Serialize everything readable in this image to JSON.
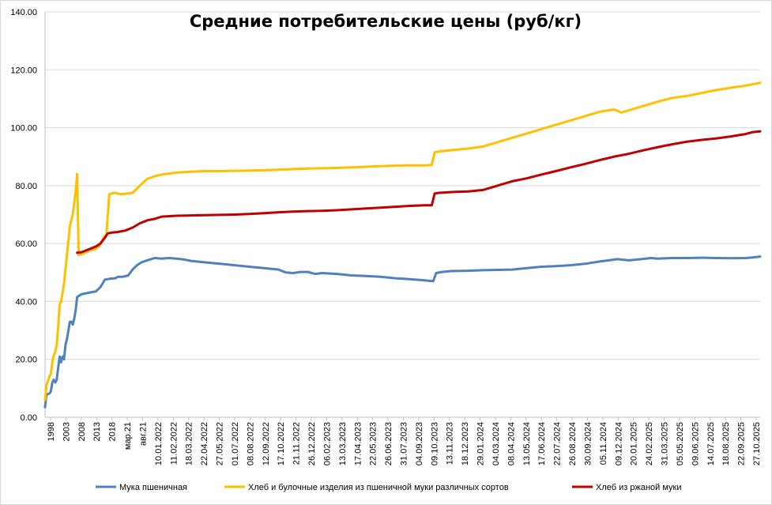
{
  "chart_data": {
    "type": "line",
    "title": "Средние потребительские цены (руб/кг)",
    "xlabel": "",
    "ylabel": "",
    "ylim": [
      0,
      140
    ],
    "y_ticks": [
      "0.00",
      "20.00",
      "40.00",
      "60.00",
      "80.00",
      "100.00",
      "120.00",
      "140.00"
    ],
    "grid": "horizontal",
    "legend_position": "bottom",
    "x_tick_labels": [
      "1998",
      "2003",
      "2008",
      "2013",
      "2018",
      "мар.21",
      "авг.21",
      "10.01.2022",
      "11.02.2022",
      "18.03.2022",
      "22.04.2022",
      "27.05.2022",
      "01.07.2022",
      "08.08.2022",
      "12.09.2022",
      "17.10.2022",
      "21.11.2022",
      "26.12.2022",
      "06.02.2023",
      "13.03.2023",
      "17.04.2023",
      "22.05.2023",
      "26.06.2023",
      "31.07.2023",
      "04.09.2023",
      "09.10.2023",
      "13.11.2023",
      "18.12.2023",
      "29.01.2024",
      "04.03.2024",
      "08.04.2024",
      "13.05.2024",
      "17.06.2024",
      "22.07.2024",
      "26.08.2024",
      "30.09.2024",
      "05.11.2024",
      "09.12.2024",
      "20.01.2025",
      "24.02.2025",
      "31.03.2025",
      "05.05.2025",
      "09.06.2025",
      "14.07.2025",
      "18.08.2025",
      "22.09.2025",
      "27.10.2025"
    ],
    "series": [
      {
        "name": "Мука пшеничная",
        "color": "#4f81bd",
        "points": [
          [
            0,
            3.5
          ],
          [
            1,
            8
          ],
          [
            2,
            8
          ],
          [
            3,
            8.2
          ],
          [
            4,
            9
          ],
          [
            5,
            12
          ],
          [
            6,
            13
          ],
          [
            7,
            12
          ],
          [
            8,
            13
          ],
          [
            9,
            17
          ],
          [
            10,
            21
          ],
          [
            11,
            19
          ],
          [
            12,
            21
          ],
          [
            13,
            20
          ],
          [
            14,
            25
          ],
          [
            15,
            27
          ],
          [
            16,
            30
          ],
          [
            17,
            33
          ],
          [
            18,
            33
          ],
          [
            19,
            32
          ],
          [
            20,
            34
          ],
          [
            21,
            37
          ],
          [
            22,
            41.5
          ],
          [
            25,
            42.5
          ],
          [
            30,
            43
          ],
          [
            35,
            43.5
          ],
          [
            38,
            45
          ],
          [
            41,
            47.5
          ],
          [
            44,
            47.8
          ],
          [
            48,
            48
          ],
          [
            50,
            48.5
          ],
          [
            53,
            48.5
          ],
          [
            57,
            49
          ],
          [
            60,
            51
          ],
          [
            63,
            52.5
          ],
          [
            66,
            53.5
          ],
          [
            69,
            54
          ],
          [
            72,
            54.5
          ],
          [
            75,
            55
          ],
          [
            80,
            54.8
          ],
          [
            85,
            55
          ],
          [
            90,
            54.8
          ],
          [
            95,
            54.5
          ],
          [
            100,
            54
          ],
          [
            110,
            53.5
          ],
          [
            120,
            53
          ],
          [
            130,
            52.5
          ],
          [
            140,
            52
          ],
          [
            150,
            51.5
          ],
          [
            160,
            51
          ],
          [
            165,
            50
          ],
          [
            170,
            49.8
          ],
          [
            175,
            50.2
          ],
          [
            180,
            50.2
          ],
          [
            185,
            49.5
          ],
          [
            190,
            49.8
          ],
          [
            200,
            49.5
          ],
          [
            210,
            49
          ],
          [
            220,
            48.8
          ],
          [
            230,
            48.5
          ],
          [
            240,
            48
          ],
          [
            250,
            47.7
          ],
          [
            260,
            47.3
          ],
          [
            266,
            47
          ],
          [
            268,
            49.8
          ],
          [
            272,
            50.2
          ],
          [
            278,
            50.5
          ],
          [
            290,
            50.6
          ],
          [
            300,
            50.8
          ],
          [
            320,
            51
          ],
          [
            330,
            51.5
          ],
          [
            340,
            52
          ],
          [
            350,
            52.2
          ],
          [
            360,
            52.5
          ],
          [
            370,
            53
          ],
          [
            380,
            53.8
          ],
          [
            388,
            54.3
          ],
          [
            392,
            54.6
          ],
          [
            400,
            54.2
          ],
          [
            410,
            54.7
          ],
          [
            415,
            55
          ],
          [
            420,
            54.8
          ],
          [
            430,
            55
          ],
          [
            440,
            55
          ],
          [
            450,
            55.1
          ],
          [
            460,
            55
          ],
          [
            470,
            54.9
          ],
          [
            480,
            55
          ],
          [
            485,
            55.2
          ],
          [
            490,
            55.5
          ]
        ]
      },
      {
        "name": "Хлеб и булочные изделия из пшеничной муки различных сортов",
        "color": "#ffc000",
        "points": [
          [
            0,
            6
          ],
          [
            1,
            11
          ],
          [
            2,
            12.5
          ],
          [
            3,
            14
          ],
          [
            4,
            15
          ],
          [
            5,
            19
          ],
          [
            6,
            21.5
          ],
          [
            7,
            22.5
          ],
          [
            8,
            25
          ],
          [
            9,
            31
          ],
          [
            10,
            39
          ],
          [
            11,
            40
          ],
          [
            12,
            43
          ],
          [
            13,
            46
          ],
          [
            14,
            51
          ],
          [
            15,
            56
          ],
          [
            16,
            61
          ],
          [
            17,
            66
          ],
          [
            18,
            68
          ],
          [
            19,
            70
          ],
          [
            20,
            74
          ],
          [
            21,
            78
          ],
          [
            22,
            84
          ],
          [
            23,
            56
          ],
          [
            26,
            56.5
          ],
          [
            30,
            57.5
          ],
          [
            34,
            58
          ],
          [
            37,
            59
          ],
          [
            40,
            62
          ],
          [
            42,
            63
          ],
          [
            44,
            77
          ],
          [
            47,
            77.5
          ],
          [
            50,
            77.3
          ],
          [
            52,
            77
          ],
          [
            55,
            77.2
          ],
          [
            60,
            77.5
          ],
          [
            65,
            80
          ],
          [
            70,
            82.3
          ],
          [
            75,
            83.2
          ],
          [
            80,
            83.8
          ],
          [
            90,
            84.5
          ],
          [
            100,
            84.8
          ],
          [
            110,
            85
          ],
          [
            120,
            85
          ],
          [
            130,
            85.1
          ],
          [
            140,
            85.2
          ],
          [
            150,
            85.3
          ],
          [
            160,
            85.5
          ],
          [
            170,
            85.7
          ],
          [
            180,
            85.9
          ],
          [
            190,
            86
          ],
          [
            200,
            86.1
          ],
          [
            210,
            86.3
          ],
          [
            220,
            86.5
          ],
          [
            230,
            86.7
          ],
          [
            240,
            86.9
          ],
          [
            250,
            87
          ],
          [
            260,
            87
          ],
          [
            265,
            87.1
          ],
          [
            267,
            91.5
          ],
          [
            270,
            91.8
          ],
          [
            280,
            92.3
          ],
          [
            290,
            92.8
          ],
          [
            300,
            93.5
          ],
          [
            310,
            95
          ],
          [
            320,
            96.5
          ],
          [
            330,
            98
          ],
          [
            340,
            99.5
          ],
          [
            350,
            101
          ],
          [
            360,
            102.5
          ],
          [
            370,
            104
          ],
          [
            380,
            105.5
          ],
          [
            390,
            106.3
          ],
          [
            395,
            105.2
          ],
          [
            400,
            106
          ],
          [
            410,
            107.5
          ],
          [
            420,
            109
          ],
          [
            430,
            110.3
          ],
          [
            440,
            111
          ],
          [
            450,
            112
          ],
          [
            460,
            113
          ],
          [
            470,
            113.8
          ],
          [
            480,
            114.5
          ],
          [
            490,
            115.5
          ]
        ]
      },
      {
        "name": "Хлеб из ржаной муки",
        "color": "#c00000",
        "points": [
          [
            22,
            56.8
          ],
          [
            25,
            57
          ],
          [
            30,
            58
          ],
          [
            35,
            59
          ],
          [
            38,
            60
          ],
          [
            41,
            62
          ],
          [
            43,
            63.5
          ],
          [
            46,
            63.8
          ],
          [
            50,
            64
          ],
          [
            55,
            64.5
          ],
          [
            60,
            65.5
          ],
          [
            65,
            67
          ],
          [
            70,
            68
          ],
          [
            75,
            68.5
          ],
          [
            80,
            69.3
          ],
          [
            90,
            69.6
          ],
          [
            100,
            69.7
          ],
          [
            110,
            69.8
          ],
          [
            120,
            69.9
          ],
          [
            130,
            70
          ],
          [
            140,
            70.2
          ],
          [
            150,
            70.5
          ],
          [
            160,
            70.8
          ],
          [
            170,
            71
          ],
          [
            180,
            71.2
          ],
          [
            190,
            71.3
          ],
          [
            200,
            71.5
          ],
          [
            210,
            71.8
          ],
          [
            220,
            72.1
          ],
          [
            230,
            72.4
          ],
          [
            240,
            72.7
          ],
          [
            250,
            73
          ],
          [
            260,
            73.2
          ],
          [
            265,
            73.2
          ],
          [
            267,
            77.3
          ],
          [
            270,
            77.5
          ],
          [
            280,
            77.8
          ],
          [
            290,
            78
          ],
          [
            300,
            78.5
          ],
          [
            310,
            80
          ],
          [
            320,
            81.5
          ],
          [
            330,
            82.5
          ],
          [
            340,
            83.8
          ],
          [
            350,
            85
          ],
          [
            360,
            86.3
          ],
          [
            370,
            87.5
          ],
          [
            380,
            88.8
          ],
          [
            390,
            90
          ],
          [
            400,
            91
          ],
          [
            410,
            92.2
          ],
          [
            420,
            93.3
          ],
          [
            430,
            94.3
          ],
          [
            440,
            95.2
          ],
          [
            450,
            95.8
          ],
          [
            460,
            96.3
          ],
          [
            470,
            97
          ],
          [
            480,
            97.8
          ],
          [
            485,
            98.5
          ],
          [
            490,
            98.7
          ]
        ]
      }
    ]
  }
}
